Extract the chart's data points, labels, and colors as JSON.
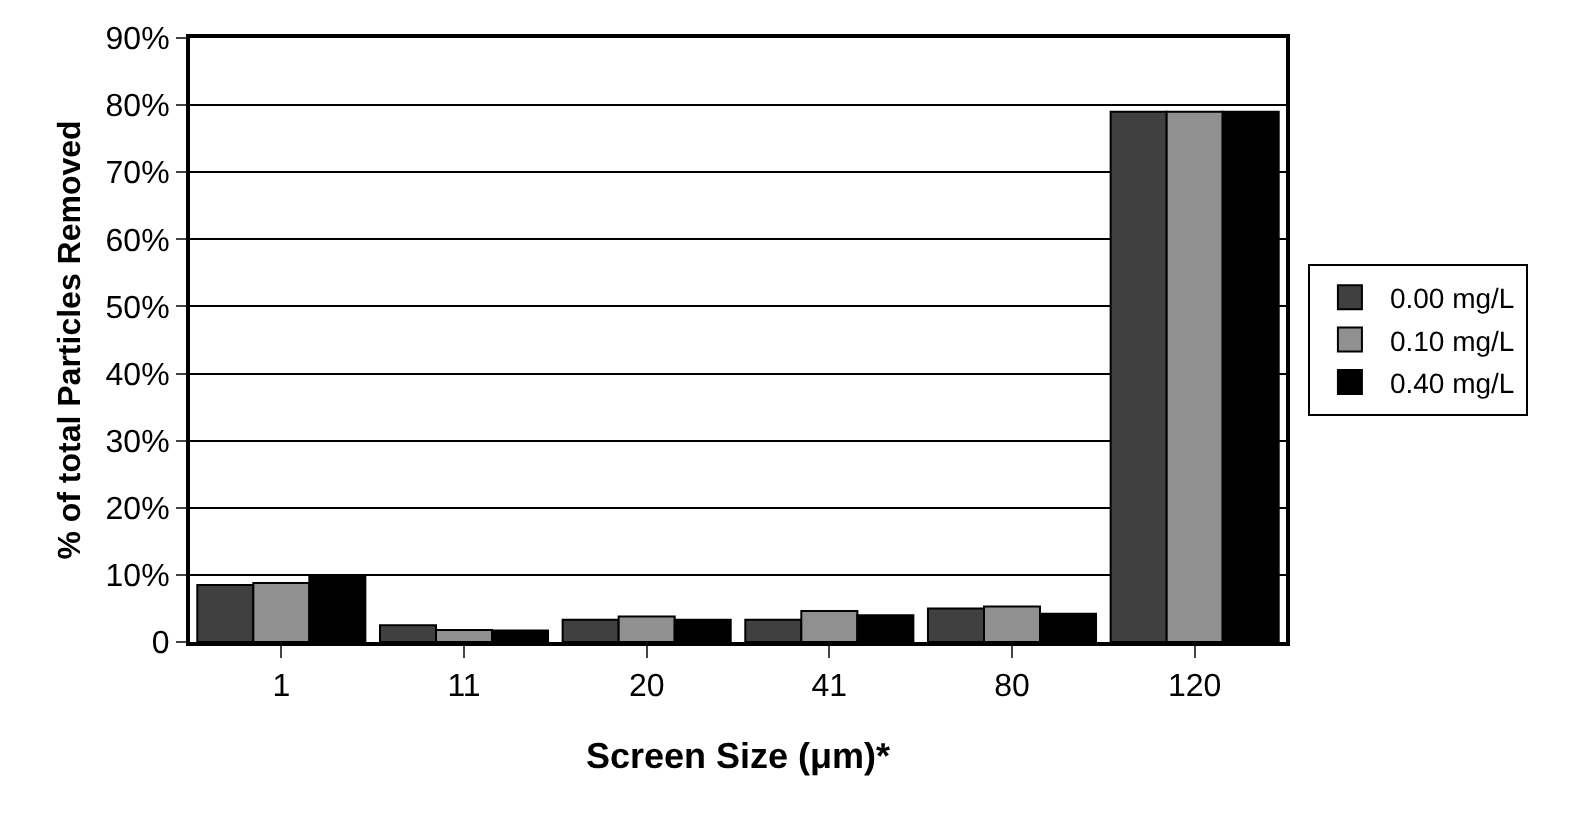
{
  "chart_data": {
    "type": "bar",
    "xlabel": "Screen Size (μm)*",
    "ylabel": "% of total Particles Removed",
    "categories": [
      "1",
      "11",
      "20",
      "41",
      "80",
      "120"
    ],
    "series": [
      {
        "name": "0.00 mg/L",
        "color": "#404040",
        "values": [
          8.5,
          2.5,
          3.3,
          3.3,
          5.0,
          79
        ]
      },
      {
        "name": "0.10 mg/L",
        "color": "#909090",
        "values": [
          8.8,
          1.8,
          3.8,
          4.6,
          5.3,
          79
        ]
      },
      {
        "name": "0.40 mg/L",
        "color": "#000000",
        "values": [
          10,
          1.7,
          3.3,
          4.0,
          4.2,
          79
        ]
      }
    ],
    "ylim": [
      0,
      90
    ],
    "yticks": [
      0,
      {
        "value": 10,
        "label": "10%"
      },
      {
        "value": 20,
        "label": "20%"
      },
      {
        "value": 30,
        "label": "30%"
      },
      {
        "value": 40,
        "label": "40%"
      },
      {
        "value": 50,
        "label": "50%"
      },
      {
        "value": 60,
        "label": "60%"
      },
      {
        "value": 70,
        "label": "70%"
      },
      {
        "value": 80,
        "label": "80%"
      },
      {
        "value": 90,
        "label": "90%"
      }
    ],
    "grid": "y",
    "legend": "right"
  }
}
